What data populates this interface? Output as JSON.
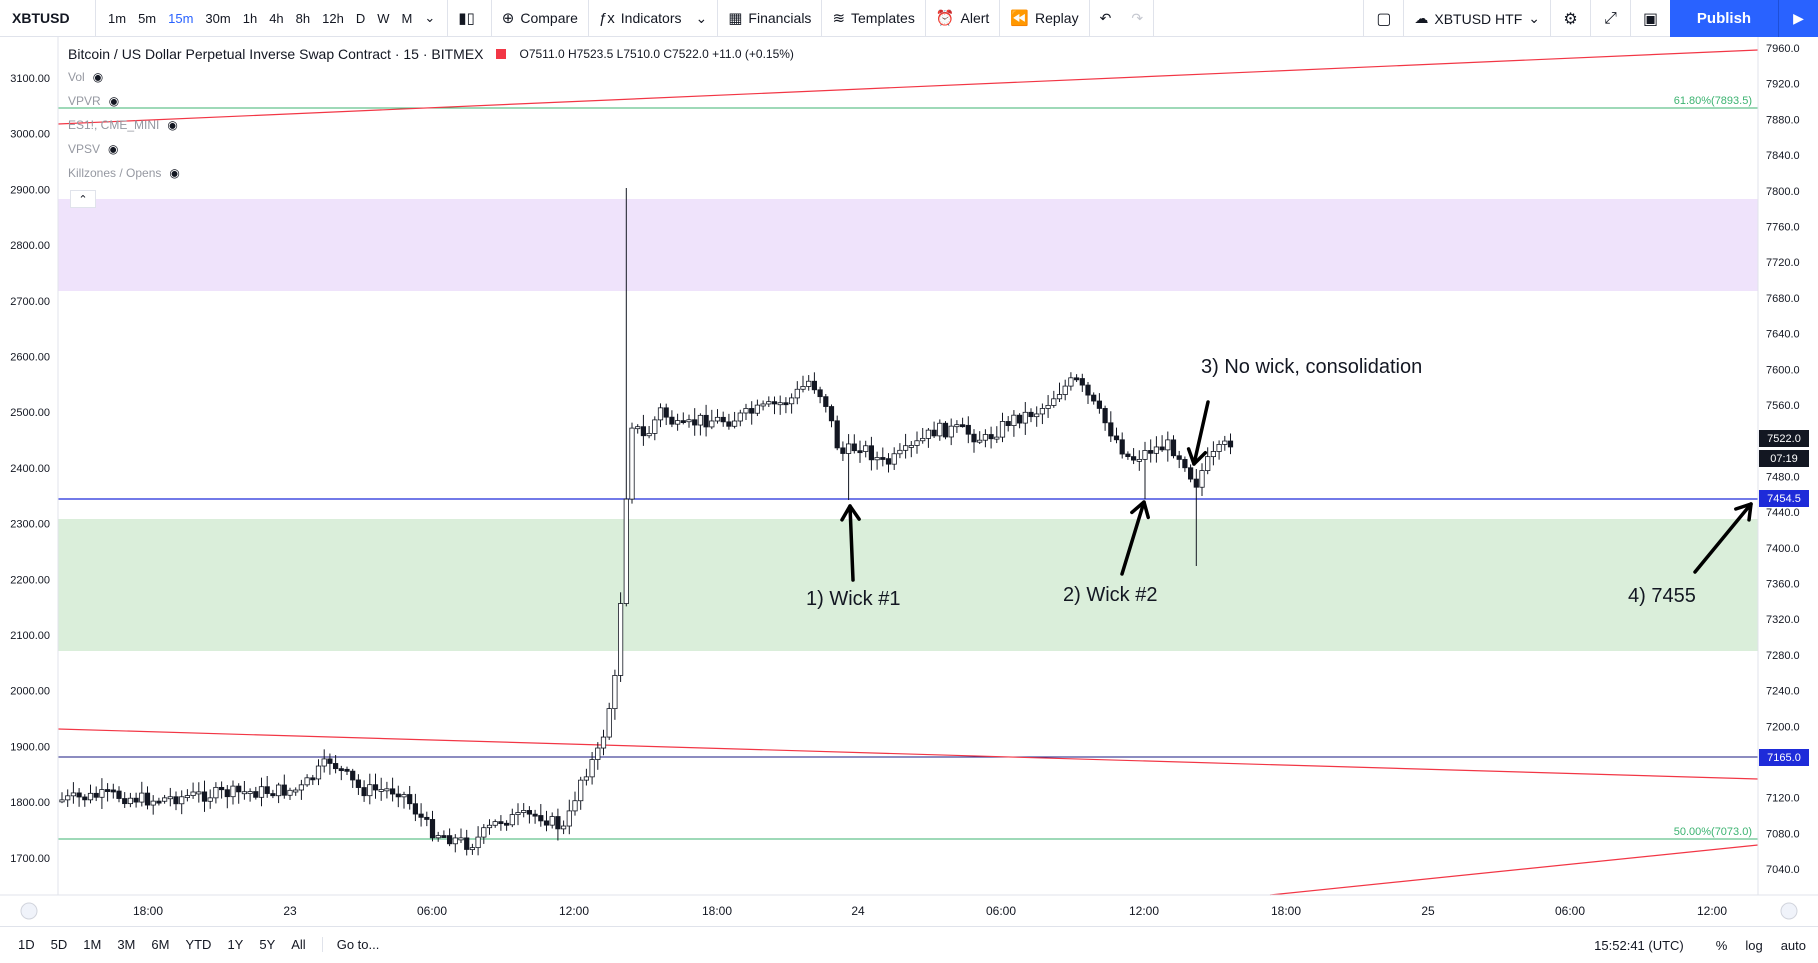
{
  "toolbar": {
    "symbol": "XBTUSD",
    "timeframes": [
      "1m",
      "5m",
      "15m",
      "30m",
      "1h",
      "4h",
      "8h",
      "12h",
      "D",
      "W",
      "M"
    ],
    "active_timeframe": "15m",
    "compare": "Compare",
    "indicators": "Indicators",
    "financials": "Financials",
    "templates": "Templates",
    "alert": "Alert",
    "replay": "Replay",
    "htf_label": "XBTUSD HTF",
    "publish": "Publish"
  },
  "legend": {
    "title": "Bitcoin / US Dollar Perpetual Inverse Swap Contract · 15 · BITMEX",
    "ohlc": "O7511.0  H7523.5  L7510.0  C7522.0  +11.0 (+0.15%)",
    "indicators": [
      "Vol",
      "VPVR",
      "ES1!, CME_MINI",
      "VPSV",
      "Killzones / Opens"
    ]
  },
  "left_axis": [
    "3100.00",
    "3000.00",
    "2900.00",
    "2800.00",
    "2700.00",
    "2600.00",
    "2500.00",
    "2400.00",
    "2300.00",
    "2200.00",
    "2100.00",
    "2000.00",
    "1900.00",
    "1800.00",
    "1700.00"
  ],
  "right_axis": [
    "7960.0",
    "7920.0",
    "7880.0",
    "7840.0",
    "7800.0",
    "7760.0",
    "7720.0",
    "7680.0",
    "7640.0",
    "7600.0",
    "7560.0",
    "7520.0",
    "7480.0",
    "7440.0",
    "7400.0",
    "7360.0",
    "7320.0",
    "7280.0",
    "7240.0",
    "7200.0",
    "7160.0",
    "7120.0",
    "7080.0",
    "7040.0"
  ],
  "time_axis": [
    "18:00",
    "23",
    "06:00",
    "12:00",
    "18:00",
    "24",
    "06:00",
    "12:00",
    "18:00",
    "25",
    "06:00",
    "12:00"
  ],
  "fib_labels": {
    "fib618": "61.80%(7893.5)",
    "fib50": "50.00%(7073.0)"
  },
  "price_tags": {
    "last": "7522.0",
    "countdown": "07:19",
    "blue_line": "7454.5",
    "navy_line": "7165.0"
  },
  "annotations": {
    "a1": "1) Wick #1",
    "a2": "2) Wick #2",
    "a3": "3) No wick, consolidation",
    "a4": "4) 7455"
  },
  "bottom": {
    "ranges": [
      "1D",
      "5D",
      "1M",
      "3M",
      "6M",
      "YTD",
      "1Y",
      "5Y",
      "All"
    ],
    "goto": "Go to...",
    "clock": "15:52:41 (UTC)",
    "percent": "%",
    "log": "log",
    "auto": "auto"
  },
  "colors": {
    "accent": "#2962ff",
    "bull": "#ffffff",
    "bear": "#131722",
    "red_line": "#f23645",
    "blue_line": "#1e2bd9",
    "purple_zone": "#ede1f8",
    "green_zone": "#dcefdc"
  }
}
